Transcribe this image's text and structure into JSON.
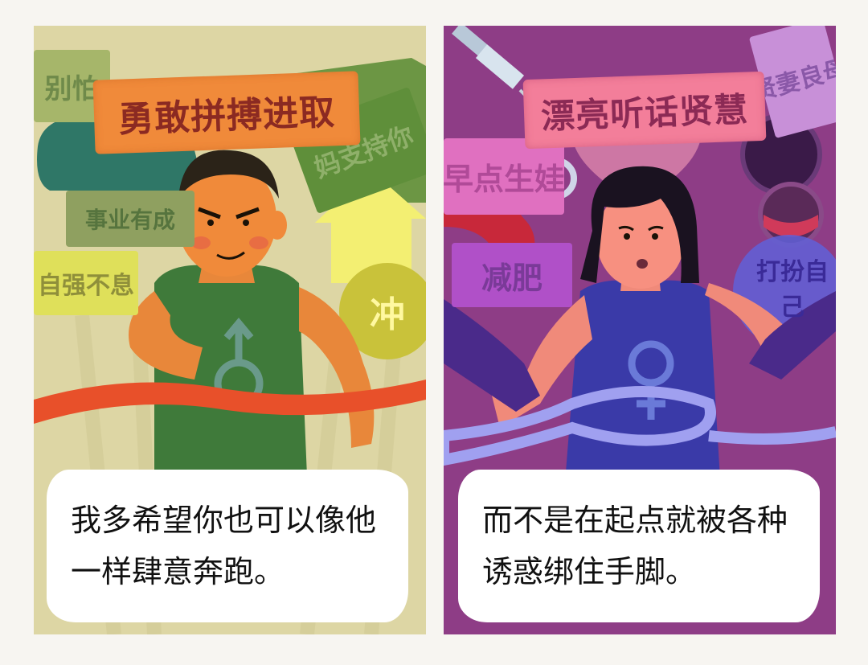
{
  "left_panel": {
    "banner": "勇敢拼搏进取",
    "signs": [
      "别怕",
      "妈支持你",
      "事业有成",
      "自强不息",
      "冲"
    ],
    "caption": [
      "我多希望你也可以像他",
      "一样肆意奔跑。"
    ],
    "colors": {
      "background": "#ddd6a4",
      "banner": "#f08a3a",
      "shirt": "#3f7a3a",
      "ribbon": "#e8502a"
    }
  },
  "right_panel": {
    "banner": "漂亮听话贤慧",
    "signs": [
      "早点生娃",
      "减肥",
      "打扮自己",
      "贤妻良母"
    ],
    "caption": [
      "而不是在起点就被各种",
      "诱惑绑住手脚。"
    ],
    "colors": {
      "background": "#8e3d86",
      "banner": "#f37e9a",
      "shirt": "#3a3aa8",
      "tape": "#8e8ee8"
    }
  }
}
